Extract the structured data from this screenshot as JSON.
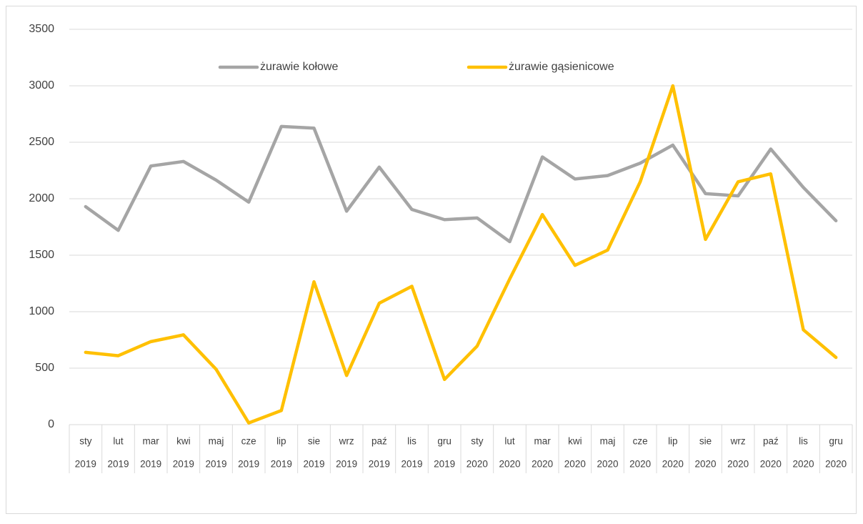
{
  "chart_data": {
    "type": "line",
    "categories": [
      [
        "sty",
        "2019"
      ],
      [
        "lut",
        "2019"
      ],
      [
        "mar",
        "2019"
      ],
      [
        "kwi",
        "2019"
      ],
      [
        "maj",
        "2019"
      ],
      [
        "cze",
        "2019"
      ],
      [
        "lip",
        "2019"
      ],
      [
        "sie",
        "2019"
      ],
      [
        "wrz",
        "2019"
      ],
      [
        "paź",
        "2019"
      ],
      [
        "lis",
        "2019"
      ],
      [
        "gru",
        "2019"
      ],
      [
        "sty",
        "2020"
      ],
      [
        "lut",
        "2020"
      ],
      [
        "mar",
        "2020"
      ],
      [
        "kwi",
        "2020"
      ],
      [
        "maj",
        "2020"
      ],
      [
        "cze",
        "2020"
      ],
      [
        "lip",
        "2020"
      ],
      [
        "sie",
        "2020"
      ],
      [
        "wrz",
        "2020"
      ],
      [
        "paź",
        "2020"
      ],
      [
        "lis",
        "2020"
      ],
      [
        "gru",
        "2020"
      ]
    ],
    "series": [
      {
        "name": "żurawie kołowe",
        "color": "#a5a5a5",
        "values": [
          1930,
          1720,
          2290,
          2330,
          2165,
          1970,
          2640,
          2625,
          1890,
          2280,
          1905,
          1815,
          1830,
          1620,
          2370,
          2175,
          2205,
          2315,
          2475,
          2045,
          2025,
          2440,
          2100,
          1805
        ]
      },
      {
        "name": "żurawie gąsienicowe",
        "color": "#ffc000",
        "values": [
          640,
          610,
          735,
          795,
          490,
          15,
          125,
          1265,
          435,
          1075,
          1225,
          400,
          695,
          1290,
          1860,
          1410,
          1545,
          2150,
          3000,
          1640,
          2150,
          2220,
          840,
          595
        ]
      }
    ],
    "ylim": [
      0,
      3500
    ],
    "yticks": [
      0,
      500,
      1000,
      1500,
      2000,
      2500,
      3000,
      3500
    ],
    "grid": true,
    "legend": "top"
  }
}
